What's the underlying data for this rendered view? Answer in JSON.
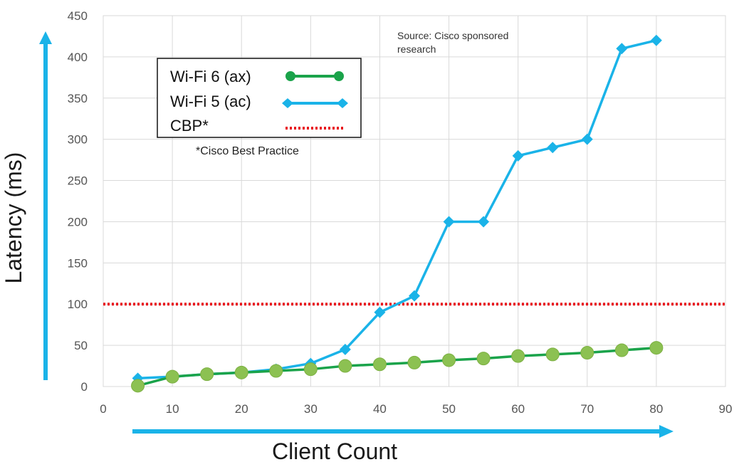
{
  "chart_data": {
    "type": "line",
    "xlabel": "Client Count",
    "ylabel": "Latency (ms)",
    "xlim": [
      0,
      90
    ],
    "ylim": [
      0,
      450
    ],
    "xticks": [
      0,
      10,
      20,
      30,
      40,
      50,
      60,
      70,
      80,
      90
    ],
    "yticks": [
      0,
      50,
      100,
      150,
      200,
      250,
      300,
      350,
      400,
      450
    ],
    "grid": true,
    "legend_position": "top-left",
    "series": [
      {
        "name": "Wi-Fi 6 (ax)",
        "color": "#8cc152",
        "line_color": "#1aa34a",
        "marker": "circle",
        "x": [
          5,
          10,
          15,
          20,
          25,
          30,
          35,
          40,
          45,
          50,
          55,
          60,
          65,
          70,
          75,
          80
        ],
        "values": [
          1,
          12,
          15,
          17,
          19,
          21,
          25,
          27,
          29,
          32,
          34,
          37,
          39,
          41,
          44,
          47
        ]
      },
      {
        "name": "Wi-Fi 5 (ac)",
        "color": "#1ab3e8",
        "line_color": "#1ab3e8",
        "marker": "diamond",
        "x": [
          5,
          10,
          15,
          20,
          25,
          30,
          35,
          40,
          45,
          50,
          55,
          60,
          65,
          70,
          75,
          80
        ],
        "values": [
          10,
          12,
          15,
          17,
          21,
          28,
          45,
          90,
          110,
          200,
          200,
          280,
          290,
          300,
          410,
          420
        ]
      }
    ],
    "reference_line": {
      "name": "CBP*",
      "value": 100,
      "color": "#e8141b",
      "style": "dotted"
    },
    "legend_note": "*Cisco Best Practice",
    "annotation": [
      "Source: Cisco sponsored",
      "research"
    ]
  }
}
